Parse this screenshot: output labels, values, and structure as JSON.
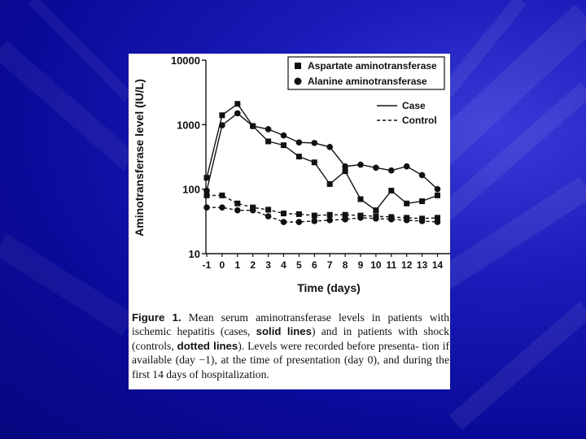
{
  "theme": {
    "background": "#0a0a98",
    "panel": "#ffffff",
    "ink": "#111111"
  },
  "chart_data": {
    "type": "line",
    "ylabel": "Aminotransferase level (IU/L)",
    "xlabel": "Time (days)",
    "yscale": "log",
    "ylim": [
      10,
      10000
    ],
    "yticks": [
      "10",
      "100",
      "1000",
      "10000"
    ],
    "x": [
      -1,
      0,
      1,
      2,
      3,
      4,
      5,
      6,
      7,
      8,
      9,
      10,
      11,
      12,
      13,
      14
    ],
    "xticks": [
      "-1",
      "0",
      "1",
      "2",
      "3",
      "4",
      "5",
      "6",
      "7",
      "8",
      "9",
      "10",
      "11",
      "12",
      "13",
      "14"
    ],
    "legend_markers": [
      {
        "marker": "square",
        "label": "Aspartate aminotransferase"
      },
      {
        "marker": "circle",
        "label": "Alanine aminotransferase"
      }
    ],
    "legend_lines": [
      {
        "style": "solid",
        "label": "Case"
      },
      {
        "style": "dashed",
        "label": "Control"
      }
    ],
    "series": [
      {
        "enzyme": "Aspartate aminotransferase",
        "group": "Case",
        "marker": "square",
        "style": "solid",
        "values": [
          150,
          1400,
          2100,
          950,
          550,
          480,
          320,
          260,
          120,
          190,
          70,
          47,
          95,
          60,
          65,
          80
        ]
      },
      {
        "enzyme": "Alanine aminotransferase",
        "group": "Case",
        "marker": "circle",
        "style": "solid",
        "values": [
          95,
          980,
          1500,
          950,
          850,
          680,
          530,
          520,
          450,
          225,
          240,
          215,
          195,
          225,
          165,
          100
        ]
      },
      {
        "enzyme": "Aspartate aminotransferase",
        "group": "Control",
        "marker": "square",
        "style": "dashed",
        "values": [
          80,
          80,
          60,
          52,
          48,
          42,
          41,
          39,
          40,
          40,
          39,
          38,
          37,
          36,
          35,
          36
        ]
      },
      {
        "enzyme": "Alanine aminotransferase",
        "group": "Control",
        "marker": "circle",
        "style": "dashed",
        "values": [
          52,
          52,
          47,
          47,
          38,
          31,
          31,
          32,
          33,
          34,
          36,
          35,
          34,
          33,
          32,
          31
        ]
      }
    ]
  },
  "caption": {
    "label": "Figure 1.",
    "lines": [
      "Mean serum aminotransferase levels in patients with",
      "ischemic hepatitis (cases, ",
      "solid lines",
      ") and in patients with shock",
      "(controls, ",
      "dotted lines",
      "). Levels were recorded before presenta-",
      "tion if available (day −1), at the time of presentation (day 0),",
      "and during the first 14 days of hospitalization."
    ]
  }
}
